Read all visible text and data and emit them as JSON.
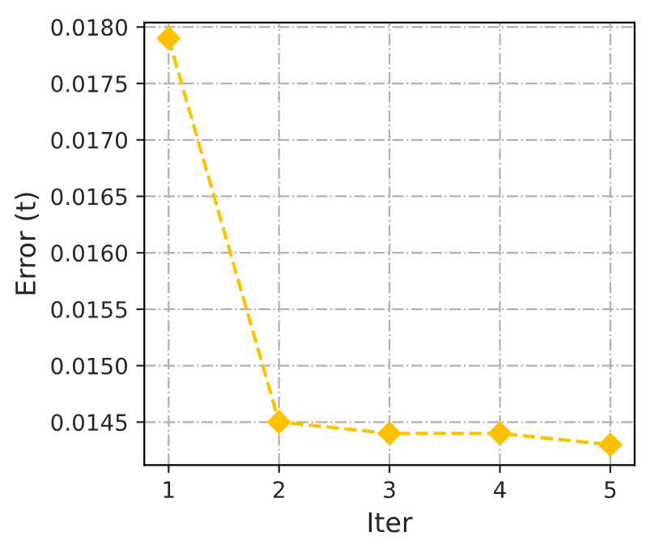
{
  "chart_data": {
    "type": "line",
    "xlabel": "Iter",
    "ylabel": "Error (t)",
    "x": [
      1,
      2,
      3,
      4,
      5
    ],
    "series": [
      {
        "color": "#ffc000",
        "values": [
          0.0179,
          0.0145,
          0.0144,
          0.0144,
          0.0143
        ]
      }
    ],
    "xlim": [
      0.78,
      5.22
    ],
    "xticks": [
      1,
      2,
      3,
      4,
      5
    ],
    "ylim": [
      0.01412,
      0.01804
    ],
    "yticks": [
      {
        "value": 0.0145,
        "label": "0.0145"
      },
      {
        "value": 0.015,
        "label": "0.0150"
      },
      {
        "value": 0.0155,
        "label": "0.0155"
      },
      {
        "value": 0.016,
        "label": "0.0160"
      },
      {
        "value": 0.0165,
        "label": "0.0165"
      },
      {
        "value": 0.017,
        "label": "0.0170"
      },
      {
        "value": 0.0175,
        "label": "0.0175"
      },
      {
        "value": 0.018,
        "label": "0.0180"
      }
    ],
    "grid": true,
    "marker": "diamond",
    "line_style": "dashed"
  }
}
